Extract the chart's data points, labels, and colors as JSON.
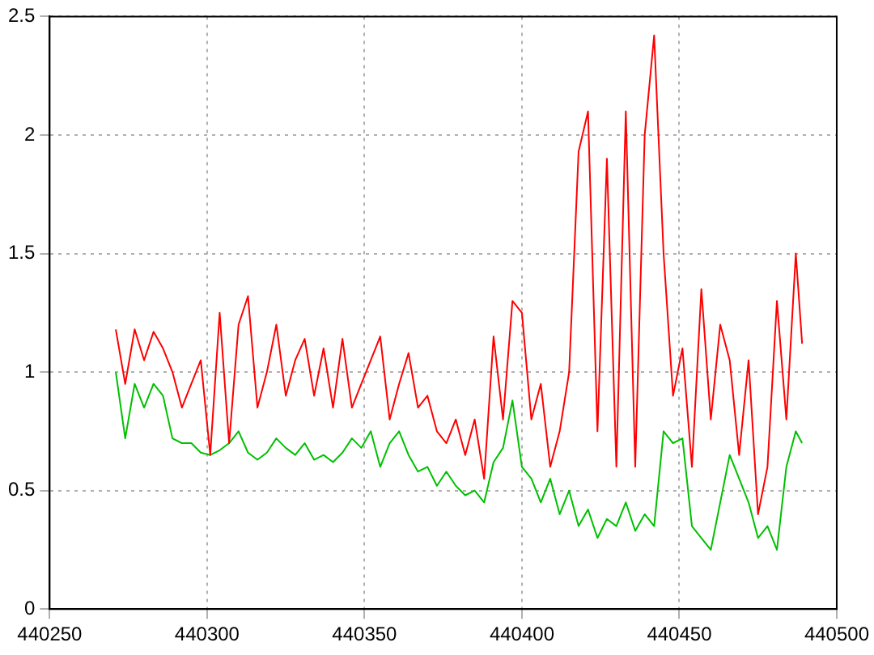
{
  "chart_data": {
    "type": "line",
    "x": [
      440271,
      440274,
      440277,
      440280,
      440283,
      440286,
      440289,
      440292,
      440295,
      440298,
      440301,
      440304,
      440307,
      440310,
      440313,
      440316,
      440319,
      440322,
      440325,
      440328,
      440331,
      440334,
      440337,
      440340,
      440343,
      440346,
      440349,
      440352,
      440355,
      440358,
      440361,
      440364,
      440367,
      440370,
      440373,
      440376,
      440379,
      440382,
      440385,
      440388,
      440391,
      440394,
      440397,
      440400,
      440403,
      440406,
      440409,
      440412,
      440415,
      440418,
      440421,
      440424,
      440427,
      440430,
      440433,
      440436,
      440439,
      440442,
      440445,
      440448,
      440451,
      440454,
      440457,
      440460,
      440463,
      440466,
      440469,
      440472,
      440475,
      440478,
      440481,
      440484,
      440487,
      440489
    ],
    "series": [
      {
        "color": "#ff0000",
        "values": [
          1.18,
          0.95,
          1.18,
          1.05,
          1.17,
          1.1,
          1.0,
          0.85,
          0.95,
          1.05,
          0.65,
          1.25,
          0.7,
          1.2,
          1.32,
          0.85,
          1.0,
          1.2,
          0.9,
          1.05,
          1.14,
          0.9,
          1.1,
          0.85,
          1.14,
          0.85,
          0.95,
          1.05,
          1.15,
          0.8,
          0.95,
          1.08,
          0.85,
          0.9,
          0.75,
          0.7,
          0.8,
          0.65,
          0.8,
          0.55,
          1.15,
          0.8,
          1.3,
          1.25,
          0.8,
          0.95,
          0.6,
          0.75,
          1.0,
          1.93,
          2.1,
          0.75,
          1.9,
          0.6,
          2.1,
          0.6,
          2.0,
          2.42,
          1.5,
          0.9,
          1.1,
          0.6,
          1.35,
          0.8,
          1.2,
          1.05,
          0.65,
          1.05,
          0.4,
          0.6,
          1.3,
          0.8,
          1.5,
          1.12
        ]
      },
      {
        "color": "#00c000",
        "values": [
          1.0,
          0.72,
          0.95,
          0.85,
          0.95,
          0.9,
          0.72,
          0.7,
          0.7,
          0.66,
          0.65,
          0.67,
          0.7,
          0.75,
          0.66,
          0.63,
          0.66,
          0.72,
          0.68,
          0.65,
          0.7,
          0.63,
          0.65,
          0.62,
          0.66,
          0.72,
          0.68,
          0.75,
          0.6,
          0.7,
          0.75,
          0.65,
          0.58,
          0.6,
          0.52,
          0.58,
          0.52,
          0.48,
          0.5,
          0.45,
          0.62,
          0.68,
          0.88,
          0.6,
          0.55,
          0.45,
          0.55,
          0.4,
          0.5,
          0.35,
          0.42,
          0.3,
          0.38,
          0.35,
          0.45,
          0.33,
          0.4,
          0.35,
          0.75,
          0.7,
          0.72,
          0.35,
          0.3,
          0.25,
          0.45,
          0.65,
          0.55,
          0.45,
          0.3,
          0.35,
          0.25,
          0.6,
          0.75,
          0.7
        ]
      }
    ],
    "xlim": [
      440250,
      440500
    ],
    "xticks": [
      440250,
      440300,
      440350,
      440400,
      440450,
      440500
    ],
    "ylim": [
      0,
      2.5
    ],
    "yticks": [
      0,
      0.5,
      1,
      1.5,
      2,
      2.5
    ],
    "grid": true,
    "legend": false,
    "marker": "none",
    "line_style": "solid"
  }
}
